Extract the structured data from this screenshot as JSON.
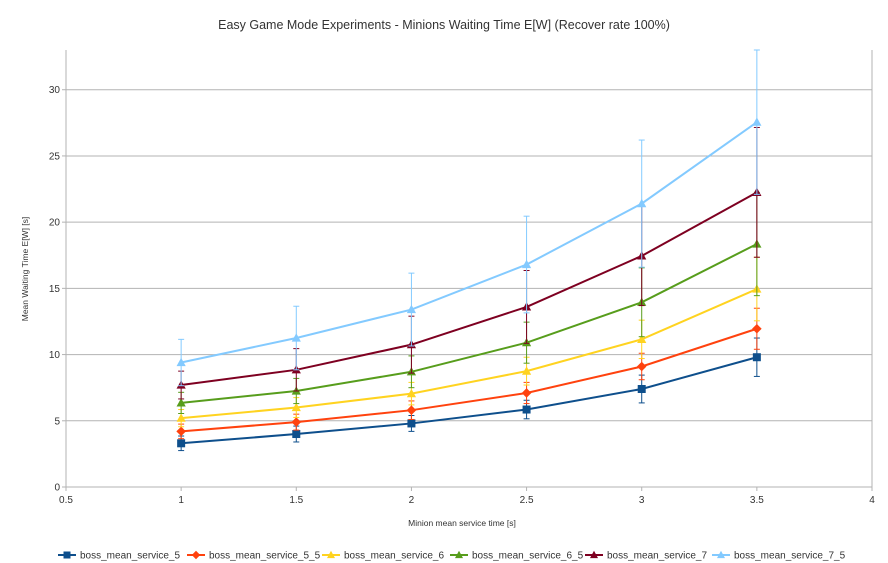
{
  "chart_data": {
    "type": "line",
    "title": "Easy Game Mode Experiments - Minions Waiting Time E[W] (Recover rate 100%)",
    "xlabel": "Minion mean service time [s]",
    "ylabel": "Mean Waiting Time E[W] [s]",
    "xlim": [
      0.5,
      4
    ],
    "ylim": [
      0,
      33
    ],
    "x_ticks": [
      "0.5",
      "1",
      "1.5",
      "2",
      "2.5",
      "3",
      "3.5",
      "4"
    ],
    "y_ticks": [
      "0",
      "5",
      "10",
      "15",
      "20",
      "25",
      "30"
    ],
    "grid": "horizontal",
    "legend_position": "bottom",
    "x": [
      1,
      1.5,
      2,
      2.5,
      3,
      3.5
    ],
    "series": [
      {
        "name": "boss_mean_service_5",
        "color": "#0e4f8c",
        "marker": "square",
        "values": [
          3.3,
          4.0,
          4.8,
          5.85,
          7.4,
          9.8
        ],
        "error": [
          0.55,
          0.6,
          0.6,
          0.7,
          1.05,
          1.45
        ]
      },
      {
        "name": "boss_mean_service_5_5",
        "color": "#ff420e",
        "marker": "diamond",
        "values": [
          4.2,
          4.9,
          5.8,
          7.1,
          9.1,
          11.95
        ],
        "error": [
          0.55,
          0.6,
          0.7,
          0.8,
          1.0,
          1.55
        ]
      },
      {
        "name": "boss_mean_service_6",
        "color": "#ffd320",
        "marker": "triangle",
        "values": [
          5.2,
          6.0,
          7.05,
          8.75,
          11.15,
          14.95
        ],
        "error": [
          0.65,
          0.75,
          0.85,
          1.05,
          1.45,
          2.4
        ]
      },
      {
        "name": "boss_mean_service_6_5",
        "color": "#579d1c",
        "marker": "triangle",
        "values": [
          6.35,
          7.25,
          8.7,
          10.9,
          13.95,
          18.35
        ],
        "error": [
          0.8,
          0.95,
          1.2,
          1.55,
          2.6,
          3.9
        ]
      },
      {
        "name": "boss_mean_service_7",
        "color": "#7e0021",
        "marker": "triangle",
        "values": [
          7.7,
          8.85,
          10.75,
          13.6,
          17.45,
          22.25
        ],
        "error": [
          1.05,
          1.6,
          2.15,
          2.75,
          3.75,
          4.9
        ]
      },
      {
        "name": "boss_mean_service_7_5",
        "color": "#83caff",
        "marker": "triangle",
        "values": [
          9.4,
          11.25,
          13.4,
          16.8,
          21.4,
          27.55
        ],
        "error": [
          1.75,
          2.4,
          2.75,
          3.65,
          4.8,
          5.45
        ]
      }
    ]
  }
}
